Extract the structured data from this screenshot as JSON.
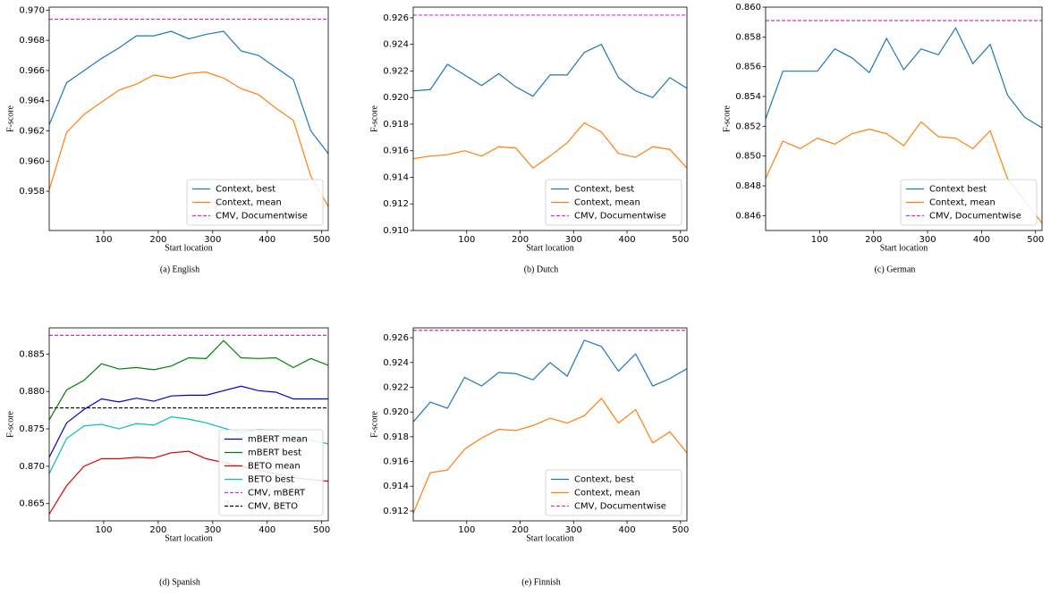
{
  "chart_data": [
    {
      "type": "line",
      "caption": "(a) English",
      "xlabel": "Start location",
      "ylabel": "F-score",
      "x": [
        0,
        32,
        64,
        96,
        128,
        160,
        192,
        224,
        256,
        288,
        320,
        352,
        384,
        416,
        448,
        480,
        512
      ],
      "xlim": [
        0,
        512
      ],
      "xticks": [
        100,
        200,
        300,
        400,
        500
      ],
      "ylim": [
        0.9554,
        0.9702
      ],
      "yticks": [
        {
          "value": 0.958,
          "label": "0.958"
        },
        {
          "value": 0.96,
          "label": "0.960"
        },
        {
          "value": 0.962,
          "label": "0.962"
        },
        {
          "value": 0.964,
          "label": "0.964"
        },
        {
          "value": 0.966,
          "label": "0.966"
        },
        {
          "value": 0.968,
          "label": "0.968"
        },
        {
          "value": 0.97,
          "label": "0.970"
        }
      ],
      "legend": "lower right",
      "series": [
        {
          "name": "Context, best",
          "color": "#1f77b4",
          "values": [
            0.9624,
            0.9652,
            0.966,
            0.9668,
            0.9675,
            0.9683,
            0.9683,
            0.9686,
            0.9681,
            0.9684,
            0.9686,
            0.9673,
            0.967,
            0.9662,
            0.9654,
            0.962,
            0.9605
          ]
        },
        {
          "name": "Context, mean",
          "color": "#ff7f0e",
          "values": [
            0.9581,
            0.9619,
            0.9631,
            0.9639,
            0.9647,
            0.9651,
            0.9657,
            0.9655,
            0.9658,
            0.9659,
            0.9655,
            0.9648,
            0.9644,
            0.9635,
            0.9627,
            0.959,
            0.957
          ]
        }
      ],
      "hlines": [
        {
          "name": "CMV, Documentwise",
          "color": "#cc33cc",
          "value": 0.9694
        }
      ]
    },
    {
      "type": "line",
      "caption": "(b) Dutch",
      "xlabel": "Start location",
      "ylabel": "F-score",
      "x": [
        0,
        32,
        64,
        96,
        128,
        160,
        192,
        224,
        256,
        288,
        320,
        352,
        384,
        416,
        448,
        480,
        512
      ],
      "xlim": [
        0,
        512
      ],
      "xticks": [
        100,
        200,
        300,
        400,
        500
      ],
      "ylim": [
        0.91,
        0.9268
      ],
      "yticks": [
        {
          "value": 0.91,
          "label": "0.910"
        },
        {
          "value": 0.912,
          "label": "0.912"
        },
        {
          "value": 0.914,
          "label": "0.914"
        },
        {
          "value": 0.916,
          "label": "0.916"
        },
        {
          "value": 0.918,
          "label": "0.918"
        },
        {
          "value": 0.92,
          "label": "0.920"
        },
        {
          "value": 0.922,
          "label": "0.922"
        },
        {
          "value": 0.924,
          "label": "0.924"
        },
        {
          "value": 0.926,
          "label": "0.926"
        }
      ],
      "legend": "lower right",
      "series": [
        {
          "name": "Context, best",
          "color": "#1f77b4",
          "values": [
            0.9205,
            0.9206,
            0.9225,
            0.9217,
            0.9209,
            0.9218,
            0.9208,
            0.9201,
            0.9217,
            0.9217,
            0.9234,
            0.924,
            0.9215,
            0.9205,
            0.92,
            0.9215,
            0.9207
          ]
        },
        {
          "name": "Context, mean",
          "color": "#ff7f0e",
          "values": [
            0.9154,
            0.9156,
            0.9157,
            0.916,
            0.9156,
            0.9163,
            0.9162,
            0.9147,
            0.9156,
            0.9166,
            0.9181,
            0.9174,
            0.9158,
            0.9155,
            0.9163,
            0.9161,
            0.9147
          ]
        }
      ],
      "hlines": [
        {
          "name": "CMV, Documentwise",
          "color": "#cc33cc",
          "value": 0.9262
        }
      ]
    },
    {
      "type": "line",
      "caption": "(c) German",
      "xlabel": "Start location",
      "ylabel": "F-score",
      "x": [
        0,
        32,
        64,
        96,
        128,
        160,
        192,
        224,
        256,
        288,
        320,
        352,
        384,
        416,
        448,
        480,
        512
      ],
      "xlim": [
        0,
        512
      ],
      "xticks": [
        100,
        200,
        300,
        400,
        500
      ],
      "ylim": [
        0.845,
        0.86
      ],
      "yticks": [
        {
          "value": 0.846,
          "label": "0.846"
        },
        {
          "value": 0.848,
          "label": "0.848"
        },
        {
          "value": 0.85,
          "label": "0.850"
        },
        {
          "value": 0.852,
          "label": "0.852"
        },
        {
          "value": 0.854,
          "label": "0.854"
        },
        {
          "value": 0.856,
          "label": "0.856"
        },
        {
          "value": 0.858,
          "label": "0.858"
        },
        {
          "value": 0.86,
          "label": "0.860"
        }
      ],
      "legend": "lower right",
      "series": [
        {
          "name": "Context best",
          "color": "#1f77b4",
          "values": [
            0.8525,
            0.8557,
            0.8557,
            0.8557,
            0.8572,
            0.8566,
            0.8556,
            0.8579,
            0.8558,
            0.8572,
            0.8568,
            0.8586,
            0.8562,
            0.8575,
            0.8541,
            0.8526,
            0.8519
          ]
        },
        {
          "name": "Context, mean",
          "color": "#ff7f0e",
          "values": [
            0.8485,
            0.851,
            0.8505,
            0.8512,
            0.8508,
            0.8515,
            0.8518,
            0.8515,
            0.8507,
            0.8523,
            0.8513,
            0.8512,
            0.8505,
            0.8517,
            0.8485,
            0.847,
            0.8455
          ]
        }
      ],
      "hlines": [
        {
          "name": "CMV, Documentwise",
          "color": "#cc33cc",
          "value": 0.8591
        }
      ]
    },
    {
      "type": "line",
      "caption": "(d) Spanish",
      "xlabel": "Start location",
      "ylabel": "F-score",
      "x": [
        0,
        32,
        64,
        96,
        128,
        160,
        192,
        224,
        256,
        288,
        320,
        352,
        384,
        416,
        448,
        480,
        512
      ],
      "xlim": [
        0,
        512
      ],
      "xticks": [
        100,
        200,
        300,
        400,
        500
      ],
      "ylim": [
        0.8627,
        0.8885
      ],
      "yticks": [
        {
          "value": 0.865,
          "label": "0.865"
        },
        {
          "value": 0.87,
          "label": "0.870"
        },
        {
          "value": 0.875,
          "label": "0.875"
        },
        {
          "value": 0.88,
          "label": "0.880"
        },
        {
          "value": 0.885,
          "label": "0.885"
        }
      ],
      "legend": "lower right",
      "series": [
        {
          "name": "mBERT mean",
          "color": "#0000cc",
          "values": [
            0.8712,
            0.8758,
            0.8776,
            0.879,
            0.8786,
            0.8791,
            0.8787,
            0.8794,
            0.8795,
            0.8795,
            0.8801,
            0.8807,
            0.8801,
            0.8799,
            0.879,
            0.879,
            0.879
          ]
        },
        {
          "name": "mBERT best",
          "color": "#008000",
          "values": [
            0.8762,
            0.8802,
            0.8815,
            0.8837,
            0.883,
            0.8832,
            0.8829,
            0.8834,
            0.8845,
            0.8844,
            0.8868,
            0.8845,
            0.8844,
            0.8845,
            0.8832,
            0.8844,
            0.8835
          ]
        },
        {
          "name": "BETO mean",
          "color": "#e00000",
          "values": [
            0.8636,
            0.8674,
            0.87,
            0.871,
            0.871,
            0.8712,
            0.8711,
            0.8718,
            0.872,
            0.871,
            0.8705,
            0.87,
            0.8695,
            0.869,
            0.8685,
            0.8682,
            0.868
          ]
        },
        {
          "name": "BETO best",
          "color": "#00bfbf",
          "values": [
            0.869,
            0.8737,
            0.8754,
            0.8756,
            0.875,
            0.8757,
            0.8755,
            0.8766,
            0.8763,
            0.8758,
            0.8751,
            0.8745,
            0.8749,
            0.8748,
            0.874,
            0.8735,
            0.873
          ]
        }
      ],
      "hlines": [
        {
          "name": "CMV, mBERT",
          "color": "#cc33cc",
          "value": 0.8875
        },
        {
          "name": "CMV, BETO",
          "color": "#000000",
          "value": 0.8778
        }
      ]
    },
    {
      "type": "line",
      "caption": "(e) Finnish",
      "xlabel": "Start location",
      "ylabel": "F-score",
      "x": [
        0,
        32,
        64,
        96,
        128,
        160,
        192,
        224,
        256,
        288,
        320,
        352,
        384,
        416,
        448,
        480,
        512
      ],
      "xlim": [
        0,
        512
      ],
      "xticks": [
        100,
        200,
        300,
        400,
        500
      ],
      "ylim": [
        0.9112,
        0.9268
      ],
      "yticks": [
        {
          "value": 0.912,
          "label": "0.912"
        },
        {
          "value": 0.914,
          "label": "0.914"
        },
        {
          "value": 0.916,
          "label": "0.916"
        },
        {
          "value": 0.918,
          "label": "0.918"
        },
        {
          "value": 0.92,
          "label": "0.920"
        },
        {
          "value": 0.922,
          "label": "0.922"
        },
        {
          "value": 0.924,
          "label": "0.924"
        },
        {
          "value": 0.926,
          "label": "0.926"
        }
      ],
      "legend": "lower right",
      "series": [
        {
          "name": "Context, best",
          "color": "#1f77b4",
          "values": [
            0.9192,
            0.9208,
            0.9203,
            0.9228,
            0.9221,
            0.9232,
            0.9231,
            0.9226,
            0.924,
            0.9229,
            0.9258,
            0.9253,
            0.9233,
            0.9247,
            0.9221,
            0.9227,
            0.9235
          ]
        },
        {
          "name": "Context, mean",
          "color": "#ff7f0e",
          "values": [
            0.9118,
            0.9151,
            0.9153,
            0.917,
            0.9179,
            0.9186,
            0.9185,
            0.9189,
            0.9195,
            0.9191,
            0.9197,
            0.9211,
            0.9191,
            0.9202,
            0.9175,
            0.9184,
            0.9167
          ]
        }
      ],
      "hlines": [
        {
          "name": "CMV, Documentwise",
          "color": "#cc33cc",
          "value": 0.9266
        }
      ]
    }
  ]
}
